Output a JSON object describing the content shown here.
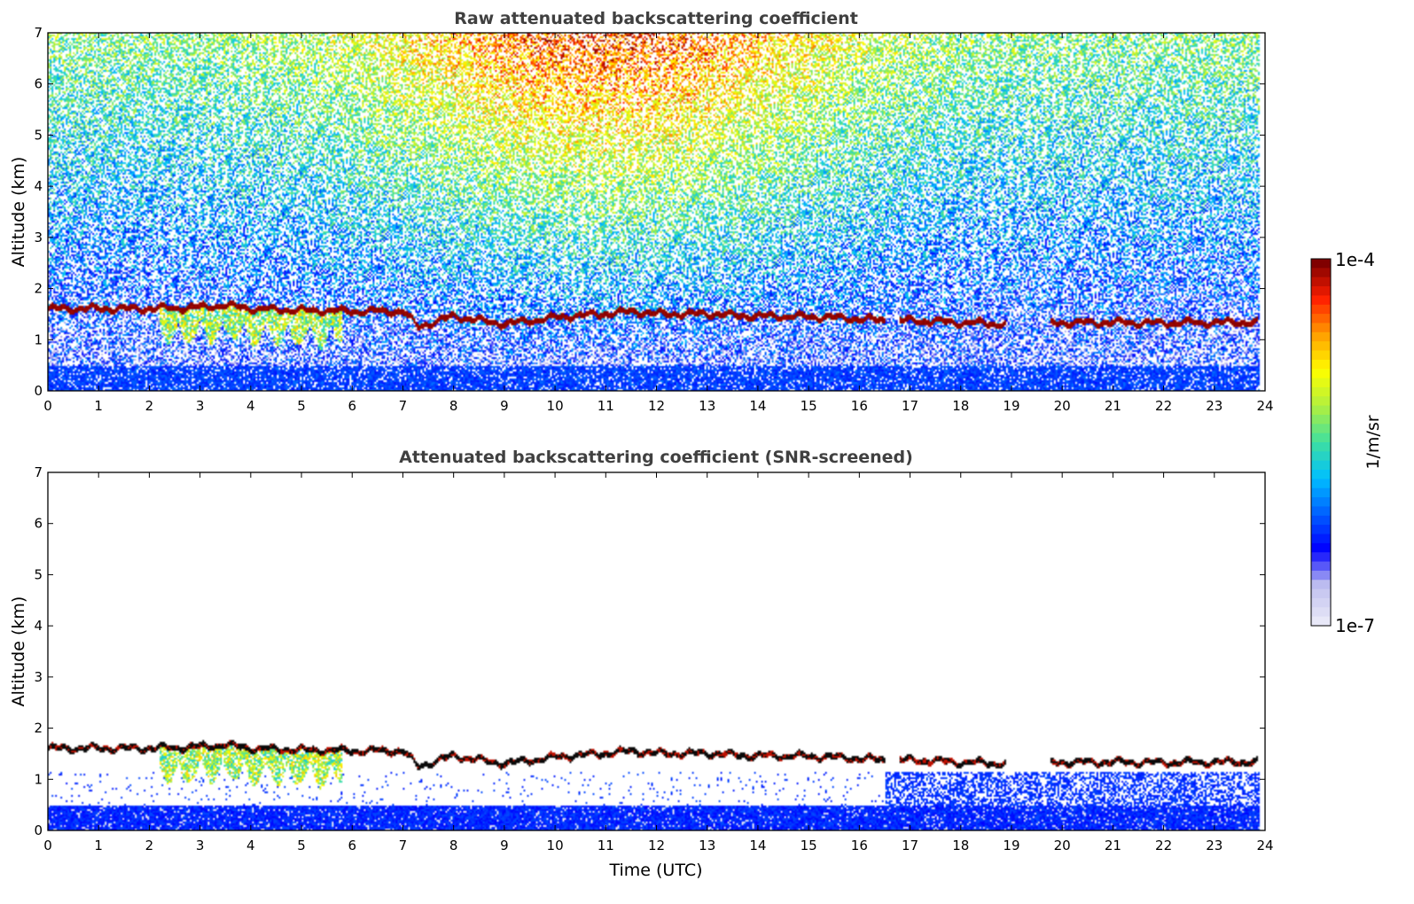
{
  "chart_data": [
    {
      "type": "heatmap",
      "title": "Raw attenuated backscattering coefficient",
      "xlabel": "",
      "ylabel": "Altitude (km)",
      "xlim": [
        0,
        24
      ],
      "ylim": [
        0,
        7
      ],
      "x_ticks": [
        "0",
        "1",
        "2",
        "3",
        "4",
        "5",
        "6",
        "7",
        "8",
        "9",
        "10",
        "11",
        "12",
        "13",
        "14",
        "15",
        "16",
        "17",
        "18",
        "19",
        "20",
        "21",
        "22",
        "23",
        "24"
      ],
      "y_ticks": [
        "0",
        "1",
        "2",
        "3",
        "4",
        "5",
        "6",
        "7"
      ],
      "screened": false,
      "cloud_base_km": {
        "x": [
          0,
          1,
          2,
          3,
          3.5,
          4,
          5,
          6,
          7,
          7.3,
          8,
          9,
          10,
          11,
          11.5,
          12,
          13,
          14,
          15,
          16,
          16.5,
          17,
          18,
          18.8,
          19.8,
          21,
          22,
          23,
          23.9
        ],
        "y": [
          1.55,
          1.55,
          1.55,
          1.58,
          1.62,
          1.55,
          1.52,
          1.5,
          1.5,
          1.2,
          1.4,
          1.25,
          1.38,
          1.45,
          1.5,
          1.45,
          1.45,
          1.4,
          1.4,
          1.35,
          1.32,
          1.32,
          1.28,
          1.25,
          1.28,
          1.28,
          1.27,
          1.28,
          1.28
        ]
      }
    },
    {
      "type": "heatmap",
      "title": "Attenuated backscattering coefficient (SNR-screened)",
      "xlabel": "Time (UTC)",
      "ylabel": "Altitude (km)",
      "xlim": [
        0,
        24
      ],
      "ylim": [
        0,
        7
      ],
      "x_ticks": [
        "0",
        "1",
        "2",
        "3",
        "4",
        "5",
        "6",
        "7",
        "8",
        "9",
        "10",
        "11",
        "12",
        "13",
        "14",
        "15",
        "16",
        "17",
        "18",
        "19",
        "20",
        "21",
        "22",
        "23",
        "24"
      ],
      "y_ticks": [
        "0",
        "1",
        "2",
        "3",
        "4",
        "5",
        "6",
        "7"
      ],
      "screened": true
    }
  ],
  "colorbar": {
    "label": "1/m/sr",
    "max_label": "1e-4",
    "min_label": "1e-7",
    "colormap": [
      "#e8e8f8",
      "#c0c0f0",
      "#0000ff",
      "#0060ff",
      "#00c0ff",
      "#40e0a0",
      "#b0f040",
      "#ffff00",
      "#ffa000",
      "#ff2000",
      "#800000"
    ]
  }
}
